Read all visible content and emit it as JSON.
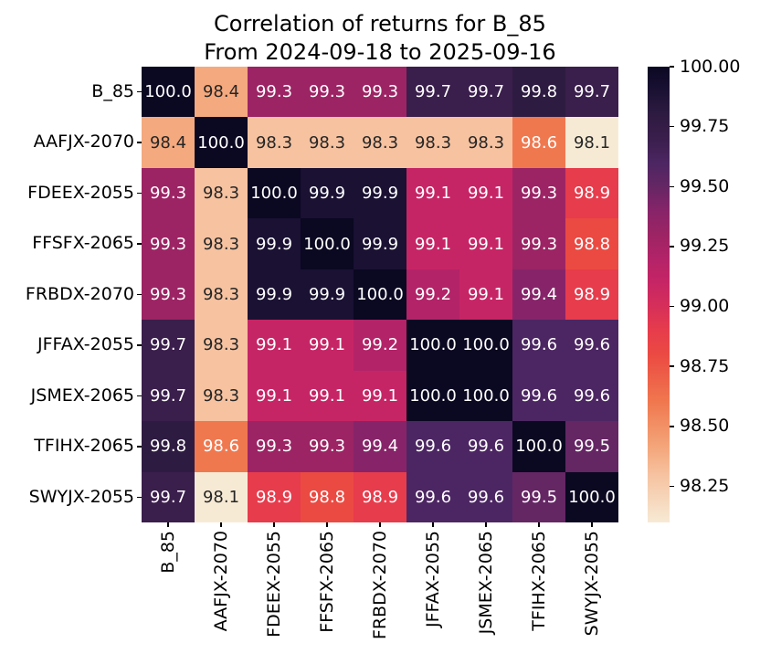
{
  "title": {
    "line1": "Correlation of returns for B_85",
    "line2": "From 2024-09-18 to 2025-09-16"
  },
  "chart_data": {
    "type": "heatmap",
    "categories": [
      "B_85",
      "AAFJX-2070",
      "FDEEX-2055",
      "FFSFX-2065",
      "FRBDX-2070",
      "JFFAX-2055",
      "JSMEX-2065",
      "TFIHX-2065",
      "SWYJX-2055"
    ],
    "matrix": [
      [
        100.0,
        98.4,
        99.3,
        99.3,
        99.3,
        99.7,
        99.7,
        99.8,
        99.7
      ],
      [
        98.4,
        100.0,
        98.3,
        98.3,
        98.3,
        98.3,
        98.3,
        98.6,
        98.1
      ],
      [
        99.3,
        98.3,
        100.0,
        99.9,
        99.9,
        99.1,
        99.1,
        99.3,
        98.9
      ],
      [
        99.3,
        98.3,
        99.9,
        100.0,
        99.9,
        99.1,
        99.1,
        99.3,
        98.8
      ],
      [
        99.3,
        98.3,
        99.9,
        99.9,
        100.0,
        99.2,
        99.1,
        99.4,
        98.9
      ],
      [
        99.7,
        98.3,
        99.1,
        99.1,
        99.2,
        100.0,
        100.0,
        99.6,
        99.6
      ],
      [
        99.7,
        98.3,
        99.1,
        99.1,
        99.1,
        100.0,
        100.0,
        99.6,
        99.6
      ],
      [
        99.8,
        98.6,
        99.3,
        99.3,
        99.4,
        99.6,
        99.6,
        100.0,
        99.5
      ],
      [
        99.7,
        98.1,
        98.9,
        98.8,
        98.9,
        99.6,
        99.6,
        99.5,
        100.0
      ]
    ],
    "value_decimals": 1,
    "vmin": 98.1,
    "vmax": 100.0,
    "colorbar_tick_labels": [
      "100.00",
      "99.75",
      "99.50",
      "99.25",
      "99.00",
      "98.75",
      "98.50",
      "98.25"
    ],
    "colorbar_tick_values": [
      100.0,
      99.75,
      99.5,
      99.25,
      99.0,
      98.75,
      98.5,
      98.25
    ],
    "colormap_name": "rocket_r",
    "colormap_stops": [
      {
        "v": 100.0,
        "c": "#0b0822"
      },
      {
        "v": 99.9,
        "c": "#1a1133"
      },
      {
        "v": 99.8,
        "c": "#2e1b41"
      },
      {
        "v": 99.7,
        "c": "#3a1e4c"
      },
      {
        "v": 99.6,
        "c": "#4c2662"
      },
      {
        "v": 99.5,
        "c": "#652664"
      },
      {
        "v": 99.4,
        "c": "#872469"
      },
      {
        "v": 99.3,
        "c": "#9c2464"
      },
      {
        "v": 99.2,
        "c": "#b32368"
      },
      {
        "v": 99.1,
        "c": "#c62565"
      },
      {
        "v": 99.0,
        "c": "#d62f59"
      },
      {
        "v": 98.9,
        "c": "#e73c4c"
      },
      {
        "v": 98.8,
        "c": "#eb4a42"
      },
      {
        "v": 98.6,
        "c": "#f0784f"
      },
      {
        "v": 98.4,
        "c": "#f4a97e"
      },
      {
        "v": 98.3,
        "c": "#f6c2a0"
      },
      {
        "v": 98.1,
        "c": "#f7ead5"
      }
    ],
    "annot_color_light": "#ffffff",
    "annot_color_dark": "#262626"
  },
  "layout_text": {
    "legend_position": "right-colorbar",
    "grid": "off"
  }
}
